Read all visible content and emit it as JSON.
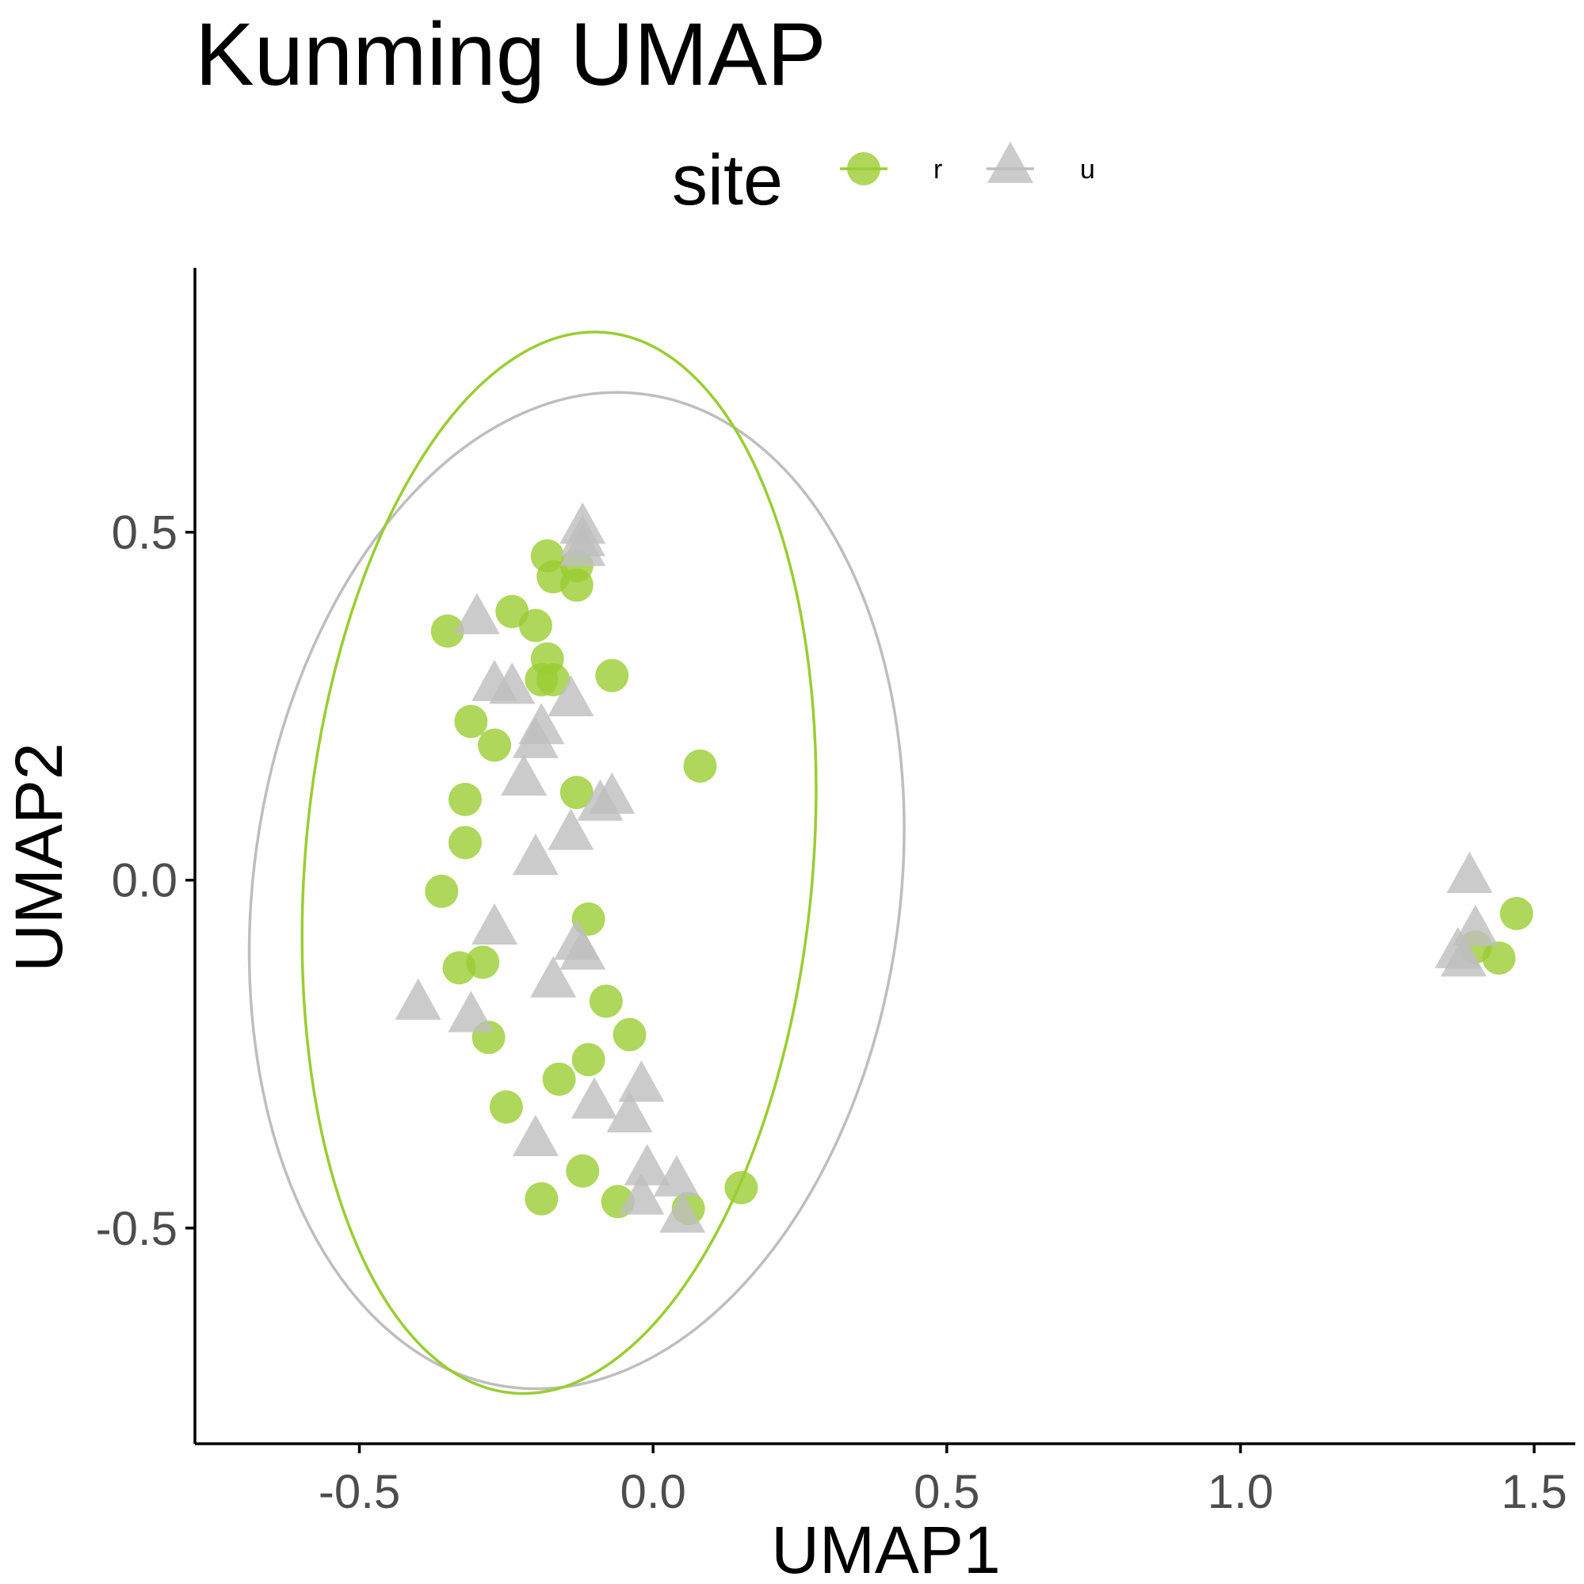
{
  "chart_data": {
    "type": "scatter",
    "title": "Kunming UMAP",
    "xlabel": "UMAP1",
    "ylabel": "UMAP2",
    "xlim": [
      -0.78,
      1.57
    ],
    "ylim": [
      -0.81,
      0.88
    ],
    "x_ticks": [
      {
        "value": -0.5,
        "label": "-0.5"
      },
      {
        "value": 0.0,
        "label": "0.0"
      },
      {
        "value": 0.5,
        "label": "0.5"
      },
      {
        "value": 1.0,
        "label": "1.0"
      },
      {
        "value": 1.5,
        "label": "1.5"
      }
    ],
    "y_ticks": [
      {
        "value": -0.5,
        "label": "-0.5"
      },
      {
        "value": 0.0,
        "label": "0.0"
      },
      {
        "value": 0.5,
        "label": "0.5"
      }
    ],
    "grid": false,
    "legend": {
      "title": "site",
      "position": "top"
    },
    "series": [
      {
        "name": "r",
        "shape": "circle",
        "color": "#9ACD32",
        "ellipse": {
          "cx": -0.16,
          "cy": 0.025,
          "rx": 0.432,
          "ry": 0.765,
          "rotation_deg": 5
        },
        "points": [
          {
            "x": -0.18,
            "y": 0.466
          },
          {
            "x": -0.17,
            "y": 0.436
          },
          {
            "x": -0.13,
            "y": 0.452
          },
          {
            "x": -0.13,
            "y": 0.424
          },
          {
            "x": -0.24,
            "y": 0.386
          },
          {
            "x": -0.2,
            "y": 0.366
          },
          {
            "x": -0.35,
            "y": 0.358
          },
          {
            "x": -0.18,
            "y": 0.318
          },
          {
            "x": -0.17,
            "y": 0.288
          },
          {
            "x": -0.19,
            "y": 0.288
          },
          {
            "x": -0.07,
            "y": 0.294
          },
          {
            "x": -0.31,
            "y": 0.228
          },
          {
            "x": -0.27,
            "y": 0.194
          },
          {
            "x": 0.08,
            "y": 0.164
          },
          {
            "x": -0.13,
            "y": 0.126
          },
          {
            "x": -0.32,
            "y": 0.116
          },
          {
            "x": -0.32,
            "y": 0.054
          },
          {
            "x": -0.36,
            "y": -0.016
          },
          {
            "x": -0.11,
            "y": -0.056
          },
          {
            "x": -0.29,
            "y": -0.118
          },
          {
            "x": -0.33,
            "y": -0.126
          },
          {
            "x": -0.08,
            "y": -0.174
          },
          {
            "x": -0.28,
            "y": -0.226
          },
          {
            "x": -0.04,
            "y": -0.222
          },
          {
            "x": -0.11,
            "y": -0.258
          },
          {
            "x": -0.16,
            "y": -0.286
          },
          {
            "x": -0.25,
            "y": -0.326
          },
          {
            "x": -0.12,
            "y": -0.418
          },
          {
            "x": 0.15,
            "y": -0.442
          },
          {
            "x": -0.19,
            "y": -0.458
          },
          {
            "x": -0.06,
            "y": -0.462
          },
          {
            "x": 0.06,
            "y": -0.472
          },
          {
            "x": 1.47,
            "y": -0.048
          },
          {
            "x": 1.4,
            "y": -0.096
          },
          {
            "x": 1.44,
            "y": -0.112
          }
        ]
      },
      {
        "name": "u",
        "shape": "triangle",
        "color": "#BEBEBE",
        "ellipse": {
          "cx": -0.13,
          "cy": -0.015,
          "rx": 0.55,
          "ry": 0.72,
          "rotation_deg": 8
        },
        "points": [
          {
            "x": -0.12,
            "y": 0.506
          },
          {
            "x": -0.12,
            "y": 0.488
          },
          {
            "x": -0.12,
            "y": 0.474
          },
          {
            "x": -0.3,
            "y": 0.376
          },
          {
            "x": -0.27,
            "y": 0.28
          },
          {
            "x": -0.24,
            "y": 0.276
          },
          {
            "x": -0.14,
            "y": 0.258
          },
          {
            "x": -0.19,
            "y": 0.218
          },
          {
            "x": -0.2,
            "y": 0.198
          },
          {
            "x": -0.22,
            "y": 0.144
          },
          {
            "x": -0.07,
            "y": 0.118
          },
          {
            "x": -0.09,
            "y": 0.108
          },
          {
            "x": -0.14,
            "y": 0.066
          },
          {
            "x": -0.2,
            "y": 0.03
          },
          {
            "x": 1.39,
            "y": 0.004
          },
          {
            "x": -0.27,
            "y": -0.07
          },
          {
            "x": -0.13,
            "y": -0.092
          },
          {
            "x": 1.4,
            "y": -0.072
          },
          {
            "x": -0.12,
            "y": -0.106
          },
          {
            "x": 1.37,
            "y": -0.104
          },
          {
            "x": 1.38,
            "y": -0.116
          },
          {
            "x": -0.17,
            "y": -0.146
          },
          {
            "x": -0.4,
            "y": -0.178
          },
          {
            "x": -0.31,
            "y": -0.196
          },
          {
            "x": -0.02,
            "y": -0.296
          },
          {
            "x": -0.1,
            "y": -0.32
          },
          {
            "x": -0.04,
            "y": -0.34
          },
          {
            "x": -0.2,
            "y": -0.374
          },
          {
            "x": -0.01,
            "y": -0.416
          },
          {
            "x": 0.04,
            "y": -0.432
          },
          {
            "x": -0.02,
            "y": -0.458
          },
          {
            "x": 0.05,
            "y": -0.484
          }
        ]
      }
    ]
  }
}
